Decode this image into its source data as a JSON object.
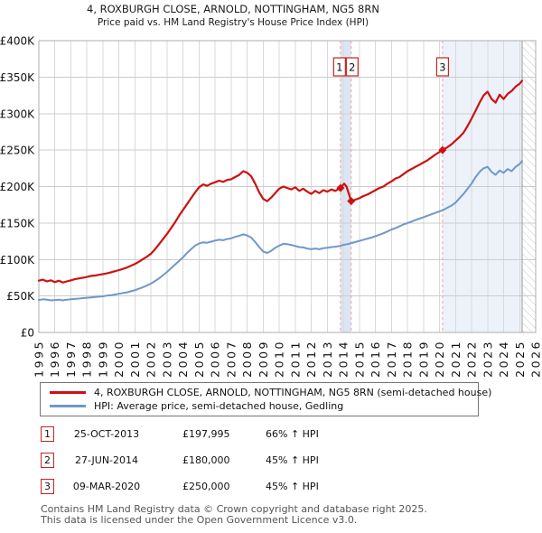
{
  "title": {
    "line1": "4, ROXBURGH CLOSE, ARNOLD, NOTTINGHAM, NG5 8RN",
    "line2": "Price paid vs. HM Land Registry's House Price Index (HPI)"
  },
  "chart_data": {
    "type": "line",
    "xlim": [
      1995,
      2026
    ],
    "ylim": [
      0,
      400000
    ],
    "x_ticks": [
      1995,
      1996,
      1997,
      1998,
      1999,
      2000,
      2001,
      2002,
      2003,
      2004,
      2005,
      2006,
      2007,
      2008,
      2009,
      2010,
      2011,
      2012,
      2013,
      2014,
      2015,
      2016,
      2017,
      2018,
      2019,
      2020,
      2021,
      2022,
      2023,
      2024,
      2025,
      2026
    ],
    "y_ticks": [
      {
        "label": "£0",
        "value": 0
      },
      {
        "label": "£50K",
        "value": 50000
      },
      {
        "label": "£100K",
        "value": 100000
      },
      {
        "label": "£150K",
        "value": 150000
      },
      {
        "label": "£200K",
        "value": 200000
      },
      {
        "label": "£250K",
        "value": 250000
      },
      {
        "label": "£300K",
        "value": 300000
      },
      {
        "label": "£350K",
        "value": 350000
      },
      {
        "label": "£400K",
        "value": 400000
      }
    ],
    "grid": true,
    "legend_position": "below",
    "series": [
      {
        "name": "4, ROXBURGH CLOSE, ARNOLD, NOTTINGHAM, NG5 8RN (semi-detached house)",
        "color": "#cc1111",
        "points": [
          [
            1995.0,
            71000
          ],
          [
            1995.25,
            72500
          ],
          [
            1995.5,
            70000
          ],
          [
            1995.75,
            71500
          ],
          [
            1996.0,
            69000
          ],
          [
            1996.25,
            71000
          ],
          [
            1996.5,
            68500
          ],
          [
            1996.75,
            70000
          ],
          [
            1997.0,
            71500
          ],
          [
            1997.25,
            73000
          ],
          [
            1997.5,
            74000
          ],
          [
            1997.75,
            75000
          ],
          [
            1998.0,
            76000
          ],
          [
            1998.25,
            77500
          ],
          [
            1998.5,
            78000
          ],
          [
            1998.75,
            79000
          ],
          [
            1999.0,
            80000
          ],
          [
            1999.25,
            81000
          ],
          [
            1999.5,
            82500
          ],
          [
            1999.75,
            84000
          ],
          [
            2000.0,
            85500
          ],
          [
            2000.25,
            87000
          ],
          [
            2000.5,
            89000
          ],
          [
            2000.75,
            91500
          ],
          [
            2001.0,
            94000
          ],
          [
            2001.25,
            97000
          ],
          [
            2001.5,
            100500
          ],
          [
            2001.75,
            104000
          ],
          [
            2002.0,
            108000
          ],
          [
            2002.25,
            114000
          ],
          [
            2002.5,
            121000
          ],
          [
            2002.75,
            128000
          ],
          [
            2003.0,
            135000
          ],
          [
            2003.25,
            143000
          ],
          [
            2003.5,
            151000
          ],
          [
            2003.75,
            160000
          ],
          [
            2004.0,
            168000
          ],
          [
            2004.25,
            176000
          ],
          [
            2004.5,
            184000
          ],
          [
            2004.75,
            192000
          ],
          [
            2005.0,
            199000
          ],
          [
            2005.25,
            203000
          ],
          [
            2005.5,
            201000
          ],
          [
            2005.75,
            204000
          ],
          [
            2006.0,
            206000
          ],
          [
            2006.25,
            208000
          ],
          [
            2006.5,
            206500
          ],
          [
            2006.75,
            209000
          ],
          [
            2007.0,
            210000
          ],
          [
            2007.25,
            213000
          ],
          [
            2007.5,
            216000
          ],
          [
            2007.75,
            221000
          ],
          [
            2008.0,
            219000
          ],
          [
            2008.25,
            214000
          ],
          [
            2008.5,
            204000
          ],
          [
            2008.75,
            192000
          ],
          [
            2009.0,
            183000
          ],
          [
            2009.25,
            180000
          ],
          [
            2009.5,
            185000
          ],
          [
            2009.75,
            191000
          ],
          [
            2010.0,
            197000
          ],
          [
            2010.25,
            200000
          ],
          [
            2010.5,
            198000
          ],
          [
            2010.75,
            196000
          ],
          [
            2011.0,
            199000
          ],
          [
            2011.25,
            194000
          ],
          [
            2011.5,
            197000
          ],
          [
            2011.75,
            193000
          ],
          [
            2012.0,
            190000
          ],
          [
            2012.25,
            194000
          ],
          [
            2012.5,
            191000
          ],
          [
            2012.75,
            195000
          ],
          [
            2013.0,
            193000
          ],
          [
            2013.25,
            196000
          ],
          [
            2013.5,
            194000
          ],
          [
            2013.82,
            197995
          ],
          [
            2014.05,
            204000
          ],
          [
            2014.2,
            200000
          ],
          [
            2014.49,
            180000
          ],
          [
            2014.75,
            182000
          ],
          [
            2015.0,
            184000
          ],
          [
            2015.25,
            187000
          ],
          [
            2015.5,
            189000
          ],
          [
            2015.75,
            192000
          ],
          [
            2016.0,
            195000
          ],
          [
            2016.25,
            198000
          ],
          [
            2016.5,
            200000
          ],
          [
            2016.75,
            204000
          ],
          [
            2017.0,
            207000
          ],
          [
            2017.25,
            211000
          ],
          [
            2017.5,
            213000
          ],
          [
            2017.75,
            217000
          ],
          [
            2018.0,
            221000
          ],
          [
            2018.25,
            224000
          ],
          [
            2018.5,
            227000
          ],
          [
            2018.75,
            230000
          ],
          [
            2019.0,
            233000
          ],
          [
            2019.25,
            236000
          ],
          [
            2019.5,
            240000
          ],
          [
            2019.75,
            244000
          ],
          [
            2020.19,
            250000
          ],
          [
            2020.5,
            254000
          ],
          [
            2020.75,
            258000
          ],
          [
            2021.0,
            263000
          ],
          [
            2021.25,
            268000
          ],
          [
            2021.5,
            274000
          ],
          [
            2021.75,
            283000
          ],
          [
            2022.0,
            293000
          ],
          [
            2022.25,
            304000
          ],
          [
            2022.5,
            315000
          ],
          [
            2022.75,
            325000
          ],
          [
            2023.0,
            330000
          ],
          [
            2023.25,
            320000
          ],
          [
            2023.5,
            315000
          ],
          [
            2023.75,
            326000
          ],
          [
            2024.0,
            320000
          ],
          [
            2024.25,
            327000
          ],
          [
            2024.5,
            331000
          ],
          [
            2024.75,
            337000
          ],
          [
            2025.0,
            341000
          ],
          [
            2025.15,
            345000
          ]
        ]
      },
      {
        "name": "HPI: Average price, semi-detached house, Gedling",
        "color": "#6f98c9",
        "points": [
          [
            1995.0,
            44500
          ],
          [
            1995.25,
            45500
          ],
          [
            1995.5,
            45000
          ],
          [
            1995.75,
            44000
          ],
          [
            1996.0,
            44500
          ],
          [
            1996.25,
            45000
          ],
          [
            1996.5,
            44000
          ],
          [
            1996.75,
            45000
          ],
          [
            1997.0,
            45500
          ],
          [
            1997.25,
            46000
          ],
          [
            1997.5,
            46500
          ],
          [
            1997.75,
            47000
          ],
          [
            1998.0,
            47500
          ],
          [
            1998.25,
            48000
          ],
          [
            1998.5,
            48500
          ],
          [
            1998.75,
            49000
          ],
          [
            1999.0,
            49500
          ],
          [
            1999.25,
            50500
          ],
          [
            1999.5,
            51000
          ],
          [
            1999.75,
            52000
          ],
          [
            2000.0,
            53000
          ],
          [
            2000.25,
            54000
          ],
          [
            2000.5,
            55000
          ],
          [
            2000.75,
            56500
          ],
          [
            2001.0,
            58000
          ],
          [
            2001.25,
            60000
          ],
          [
            2001.5,
            62000
          ],
          [
            2001.75,
            64500
          ],
          [
            2002.0,
            67000
          ],
          [
            2002.25,
            70500
          ],
          [
            2002.5,
            74000
          ],
          [
            2002.75,
            78500
          ],
          [
            2003.0,
            83000
          ],
          [
            2003.25,
            88000
          ],
          [
            2003.5,
            93000
          ],
          [
            2003.75,
            98000
          ],
          [
            2004.0,
            103000
          ],
          [
            2004.25,
            109000
          ],
          [
            2004.5,
            114000
          ],
          [
            2004.75,
            119000
          ],
          [
            2005.0,
            122000
          ],
          [
            2005.25,
            123500
          ],
          [
            2005.5,
            123000
          ],
          [
            2005.75,
            124500
          ],
          [
            2006.0,
            126000
          ],
          [
            2006.25,
            127000
          ],
          [
            2006.5,
            126500
          ],
          [
            2006.75,
            128000
          ],
          [
            2007.0,
            129000
          ],
          [
            2007.25,
            131000
          ],
          [
            2007.5,
            132500
          ],
          [
            2007.75,
            134500
          ],
          [
            2008.0,
            133000
          ],
          [
            2008.25,
            130000
          ],
          [
            2008.5,
            124000
          ],
          [
            2008.75,
            117000
          ],
          [
            2009.0,
            111000
          ],
          [
            2009.25,
            109000
          ],
          [
            2009.5,
            112000
          ],
          [
            2009.75,
            116000
          ],
          [
            2010.0,
            119000
          ],
          [
            2010.25,
            121500
          ],
          [
            2010.5,
            121000
          ],
          [
            2010.75,
            120000
          ],
          [
            2011.0,
            118500
          ],
          [
            2011.25,
            117000
          ],
          [
            2011.5,
            116500
          ],
          [
            2011.75,
            115000
          ],
          [
            2012.0,
            114000
          ],
          [
            2012.25,
            115000
          ],
          [
            2012.5,
            114000
          ],
          [
            2012.75,
            115500
          ],
          [
            2013.0,
            116000
          ],
          [
            2013.25,
            117000
          ],
          [
            2013.5,
            117500
          ],
          [
            2013.75,
            118500
          ],
          [
            2014.0,
            120000
          ],
          [
            2014.25,
            121000
          ],
          [
            2014.5,
            122500
          ],
          [
            2014.75,
            124000
          ],
          [
            2015.0,
            125500
          ],
          [
            2015.25,
            127000
          ],
          [
            2015.5,
            128500
          ],
          [
            2015.75,
            130000
          ],
          [
            2016.0,
            132000
          ],
          [
            2016.25,
            134000
          ],
          [
            2016.5,
            136000
          ],
          [
            2016.75,
            138500
          ],
          [
            2017.0,
            141000
          ],
          [
            2017.25,
            143000
          ],
          [
            2017.5,
            145500
          ],
          [
            2017.75,
            148000
          ],
          [
            2018.0,
            150000
          ],
          [
            2018.25,
            152000
          ],
          [
            2018.5,
            154000
          ],
          [
            2018.75,
            156000
          ],
          [
            2019.0,
            158000
          ],
          [
            2019.25,
            160000
          ],
          [
            2019.5,
            162000
          ],
          [
            2019.75,
            164000
          ],
          [
            2020.0,
            166000
          ],
          [
            2020.25,
            168000
          ],
          [
            2020.5,
            171000
          ],
          [
            2020.75,
            174000
          ],
          [
            2021.0,
            178000
          ],
          [
            2021.25,
            184000
          ],
          [
            2021.5,
            190000
          ],
          [
            2021.75,
            197000
          ],
          [
            2022.0,
            204000
          ],
          [
            2022.25,
            213000
          ],
          [
            2022.5,
            220000
          ],
          [
            2022.75,
            225000
          ],
          [
            2023.0,
            227000
          ],
          [
            2023.25,
            220000
          ],
          [
            2023.5,
            216000
          ],
          [
            2023.75,
            222000
          ],
          [
            2024.0,
            219000
          ],
          [
            2024.25,
            224000
          ],
          [
            2024.5,
            221000
          ],
          [
            2024.75,
            227000
          ],
          [
            2025.0,
            231000
          ],
          [
            2025.15,
            235000
          ]
        ]
      }
    ],
    "sales": [
      {
        "n": "1",
        "date_decimal": 2013.82,
        "price": 197995
      },
      {
        "n": "2",
        "date_decimal": 2014.49,
        "price": 180000
      },
      {
        "n": "3",
        "date_decimal": 2020.19,
        "price": 250000
      }
    ],
    "sale_marker_color": "#cc1111",
    "sale_line_color": "#f2a0a0",
    "shaded_regions": [
      {
        "from": 2013.82,
        "to": 2014.49,
        "color": "#dce6f3"
      },
      {
        "from": 2020.19,
        "to": 2025.15,
        "color": "#edf2fa"
      }
    ],
    "hatch_region": {
      "from": 2025.15,
      "to": 2026
    }
  },
  "legend": {
    "entries": [
      {
        "label": "4, ROXBURGH CLOSE, ARNOLD, NOTTINGHAM, NG5 8RN (semi-detached house)",
        "color": "#cc1111"
      },
      {
        "label": "HPI: Average price, semi-detached house, Gedling",
        "color": "#6f98c9"
      }
    ]
  },
  "table": {
    "rows": [
      {
        "num": "1",
        "date": "25-OCT-2013",
        "price": "£197,995",
        "hpi": "66% ↑ HPI"
      },
      {
        "num": "2",
        "date": "27-JUN-2014",
        "price": "£180,000",
        "hpi": "45% ↑ HPI"
      },
      {
        "num": "3",
        "date": "09-MAR-2020",
        "price": "£250,000",
        "hpi": "45% ↑ HPI"
      }
    ]
  },
  "footer": {
    "line1": "Contains HM Land Registry data © Crown copyright and database right 2025.",
    "line2": "This data is licensed under the Open Government Licence v3.0."
  }
}
